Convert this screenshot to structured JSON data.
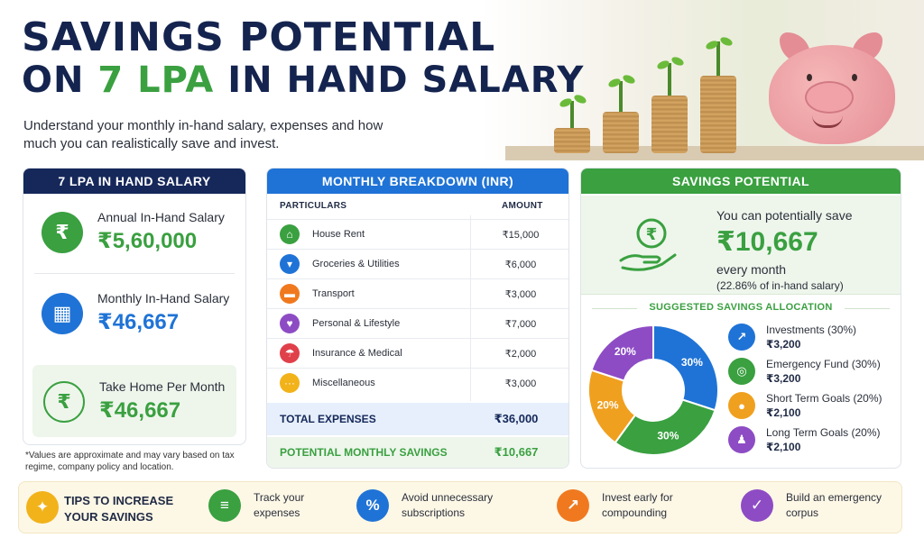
{
  "header": {
    "title_line1": "SAVINGS POTENTIAL",
    "title_line2_prefix": "ON ",
    "title_line2_highlight": "7 LPA",
    "title_line2_suffix": " IN HAND SALARY",
    "subtitle": "Understand your monthly in-hand salary, expenses and how much you can realistically save and invest."
  },
  "salary_panel": {
    "title": "7 LPA IN HAND SALARY",
    "annual_label": "Annual In-Hand Salary",
    "annual_value": "₹5,60,000",
    "monthly_label": "Monthly In-Hand Salary",
    "monthly_value": "₹46,667",
    "take_home_label": "Take Home Per Month",
    "take_home_value": "₹46,667",
    "note": "*Values are approximate and may vary based on tax regime, company policy and location."
  },
  "breakdown_panel": {
    "title": "MONTHLY BREAKDOWN (INR)",
    "col_particulars": "PARTICULARS",
    "col_amount": "AMOUNT",
    "rows": [
      {
        "name": "House Rent",
        "amount": "₹15,000",
        "icon": "home-icon",
        "color": "#3aa040"
      },
      {
        "name": "Groceries & Utilities",
        "amount": "₹6,000",
        "icon": "cart-icon",
        "color": "#1f73d6"
      },
      {
        "name": "Transport",
        "amount": "₹3,000",
        "icon": "car-icon",
        "color": "#f0791f"
      },
      {
        "name": "Personal & Lifestyle",
        "amount": "₹7,000",
        "icon": "heart-icon",
        "color": "#8d4cc4"
      },
      {
        "name": "Insurance & Medical",
        "amount": "₹2,000",
        "icon": "umbrella-icon",
        "color": "#e0404a"
      },
      {
        "name": "Miscellaneous",
        "amount": "₹3,000",
        "icon": "dots-icon",
        "color": "#f2b21a"
      }
    ],
    "total_label": "TOTAL EXPENSES",
    "total_value": "₹36,000",
    "savings_label": "POTENTIAL MONTHLY SAVINGS",
    "savings_value": "₹10,667"
  },
  "savings_panel": {
    "title": "SAVINGS POTENTIAL",
    "line1": "You can potentially save",
    "value": "₹10,667",
    "line2": "every month",
    "line3": "(22.86% of in-hand salary)",
    "allocation_title": "SUGGESTED SAVINGS ALLOCATION",
    "allocations": [
      {
        "label": "Investments (30%)",
        "value": "₹3,200",
        "icon": "chart-up-icon",
        "color": "#1f73d6"
      },
      {
        "label": "Emergency Fund (30%)",
        "value": "₹3,200",
        "icon": "target-icon",
        "color": "#3aa040"
      },
      {
        "label": "Short Term Goals (20%)",
        "value": "₹2,100",
        "icon": "piggy-icon",
        "color": "#f0a01f"
      },
      {
        "label": "Long Term Goals (20%)",
        "value": "₹2,100",
        "icon": "people-icon",
        "color": "#8d4cc4"
      }
    ]
  },
  "chart_data": {
    "type": "pie",
    "categories": [
      "Investments",
      "Emergency Fund",
      "Short Term Goals",
      "Long Term Goals"
    ],
    "values": [
      30,
      30,
      20,
      20
    ],
    "labels": [
      "30%",
      "30%",
      "20%",
      "20%"
    ],
    "colors": [
      "#1f73d6",
      "#3aa040",
      "#f0a01f",
      "#8d4cc4"
    ]
  },
  "tips": {
    "title": "TIPS TO INCREASE YOUR SAVINGS",
    "items": [
      {
        "text": "Track your expenses",
        "icon": "document-icon",
        "color": "#3aa040"
      },
      {
        "text": "Avoid unnecessary subscriptions",
        "icon": "percent-icon",
        "color": "#1f73d6"
      },
      {
        "text": "Invest early for compounding",
        "icon": "growth-icon",
        "color": "#f0791f"
      },
      {
        "text": "Build an emergency corpus",
        "icon": "shield-icon",
        "color": "#8d4cc4"
      }
    ]
  }
}
